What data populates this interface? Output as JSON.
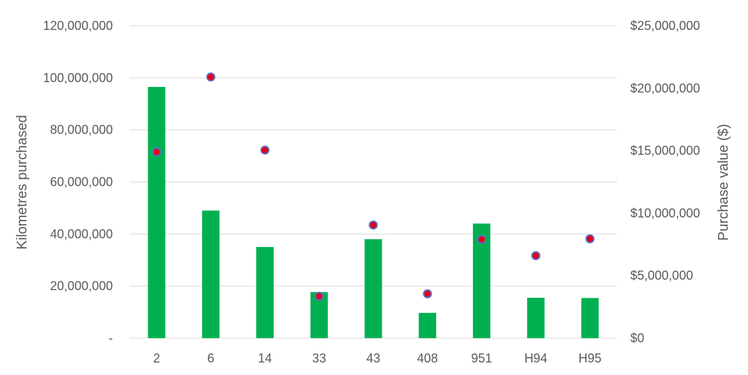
{
  "chart_data": {
    "type": "bar",
    "title": "",
    "xlabel": "",
    "ylabel": "Kilometres purchased",
    "y2label": "Purchase value ($)",
    "categories": [
      "2",
      "6",
      "14",
      "33",
      "43",
      "408",
      "951",
      "H94",
      "H95"
    ],
    "ylim": [
      0,
      120000000
    ],
    "y2lim": [
      0,
      25000000
    ],
    "y_ticks": [
      "-",
      "20,000,000",
      "40,000,000",
      "60,000,000",
      "80,000,000",
      "100,000,000",
      "120,000,000"
    ],
    "y2_ticks": [
      "$0",
      "$5,000,000",
      "$10,000,000",
      "$15,000,000",
      "$20,000,000",
      "$25,000,000"
    ],
    "grid": true,
    "legend": "none",
    "series": [
      {
        "type": "bar",
        "axis": "left",
        "color": "#00b050",
        "values": [
          96500000,
          49000000,
          35000000,
          17700000,
          38000000,
          9700000,
          44000000,
          15500000,
          15400000
        ]
      },
      {
        "type": "scatter",
        "axis": "right",
        "color": "#e3001b",
        "edge_color": "#5b6fc6",
        "values": [
          14900000,
          20900000,
          15050000,
          3350000,
          9050000,
          3550000,
          7900000,
          6600000,
          7950000
        ]
      }
    ]
  }
}
